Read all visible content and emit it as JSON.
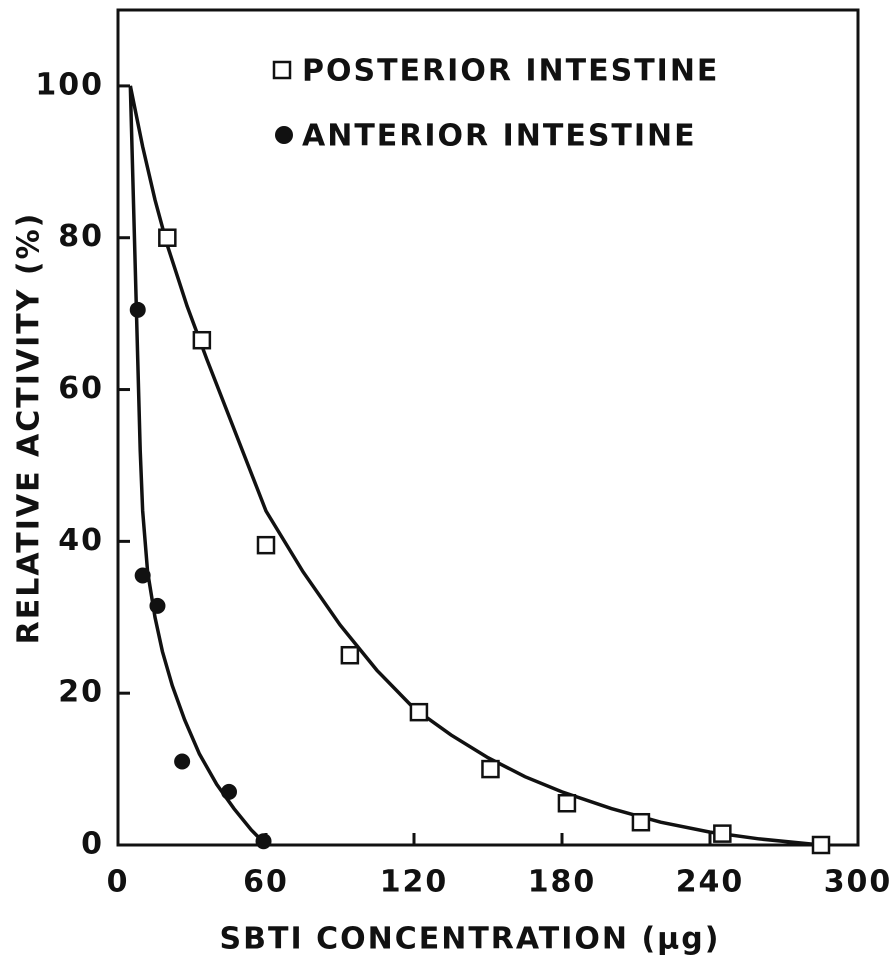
{
  "chart_data": {
    "type": "scatter",
    "x_label": "SBTI  CONCENTRATION (μg)",
    "y_label": "RELATIVE ACTIVITY (%)",
    "xlim": [
      0,
      300
    ],
    "xticks": [
      0,
      60,
      120,
      180,
      240,
      300
    ],
    "ylim": [
      0,
      110
    ],
    "yticks": [
      0,
      20,
      40,
      60,
      80,
      100
    ],
    "series": [
      {
        "name": "POSTERIOR INTESTINE",
        "marker": "square",
        "color": "#111111",
        "x": [
          20,
          34,
          60,
          94,
          122,
          151,
          182,
          212,
          245,
          285
        ],
        "values": [
          80,
          66.5,
          39.5,
          25,
          17.5,
          10,
          5.5,
          3,
          1.5,
          0
        ],
        "line": {
          "x": [
            5,
            10,
            15,
            20,
            28,
            36,
            48,
            60,
            75,
            90,
            105,
            120,
            135,
            150,
            165,
            180,
            200,
            220,
            240,
            260,
            285
          ],
          "y": [
            100,
            92,
            85,
            79,
            71,
            64,
            54,
            44,
            36,
            29,
            23,
            18,
            14.5,
            11.5,
            9,
            7,
            4.8,
            3,
            1.7,
            0.8,
            0
          ]
        }
      },
      {
        "name": "ANTERIOR INTESTINE",
        "marker": "circle",
        "color": "#111111",
        "x": [
          8,
          10,
          16,
          26,
          45,
          59
        ],
        "values": [
          70.5,
          35.5,
          31.5,
          11,
          7,
          0.5
        ],
        "line": {
          "x": [
            5,
            6,
            7,
            8,
            9,
            10,
            12,
            15,
            18,
            22,
            27,
            33,
            40,
            47,
            54,
            60
          ],
          "y": [
            100,
            88,
            76,
            64,
            52,
            44,
            36,
            30,
            25.5,
            21,
            16.5,
            12,
            8,
            4.8,
            2,
            0
          ]
        }
      }
    ]
  }
}
